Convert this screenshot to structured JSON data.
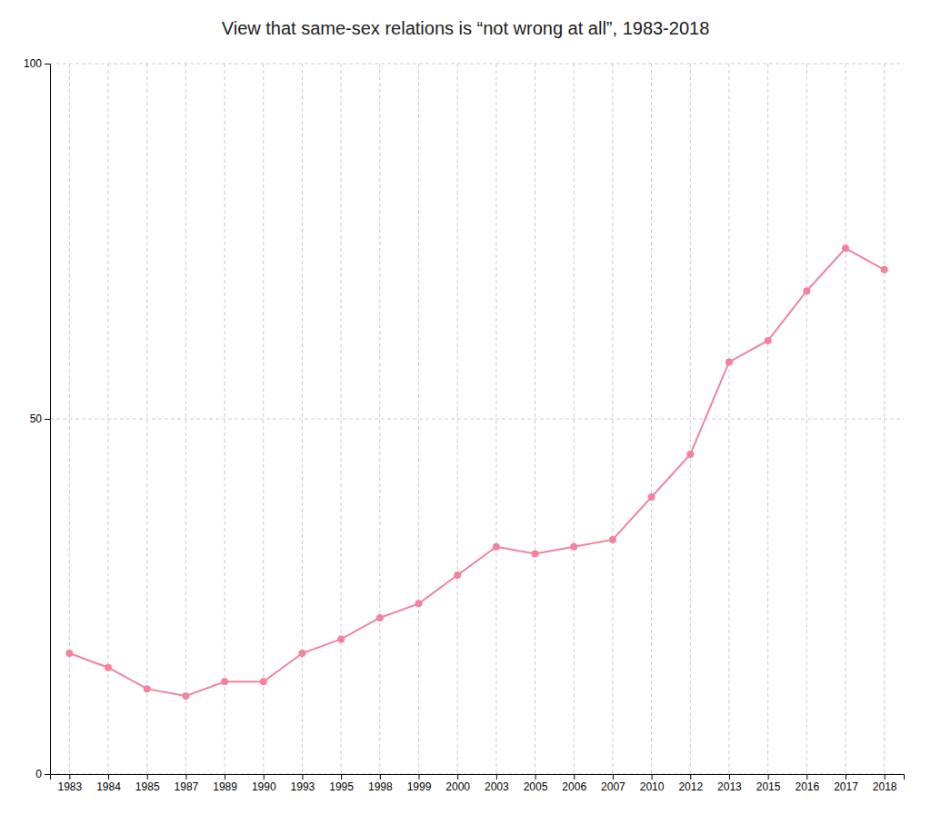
{
  "chart_data": {
    "type": "line",
    "title": "View that same-sex relations is “not wrong at all”, 1983-2018",
    "categories": [
      "1983",
      "1984",
      "1985",
      "1987",
      "1989",
      "1990",
      "1993",
      "1995",
      "1998",
      "1999",
      "2000",
      "2003",
      "2005",
      "2006",
      "2007",
      "2010",
      "2012",
      "2013",
      "2015",
      "2016",
      "2017",
      "2018"
    ],
    "values": [
      17,
      15,
      12,
      11,
      13,
      13,
      17,
      19,
      22,
      24,
      28,
      32,
      31,
      32,
      33,
      39,
      45,
      58,
      61,
      68,
      74,
      71
    ],
    "color": "#f4829e",
    "marker": "circle",
    "ylim": [
      0,
      100
    ],
    "yticks": [
      0,
      50,
      100
    ],
    "grid": true
  }
}
